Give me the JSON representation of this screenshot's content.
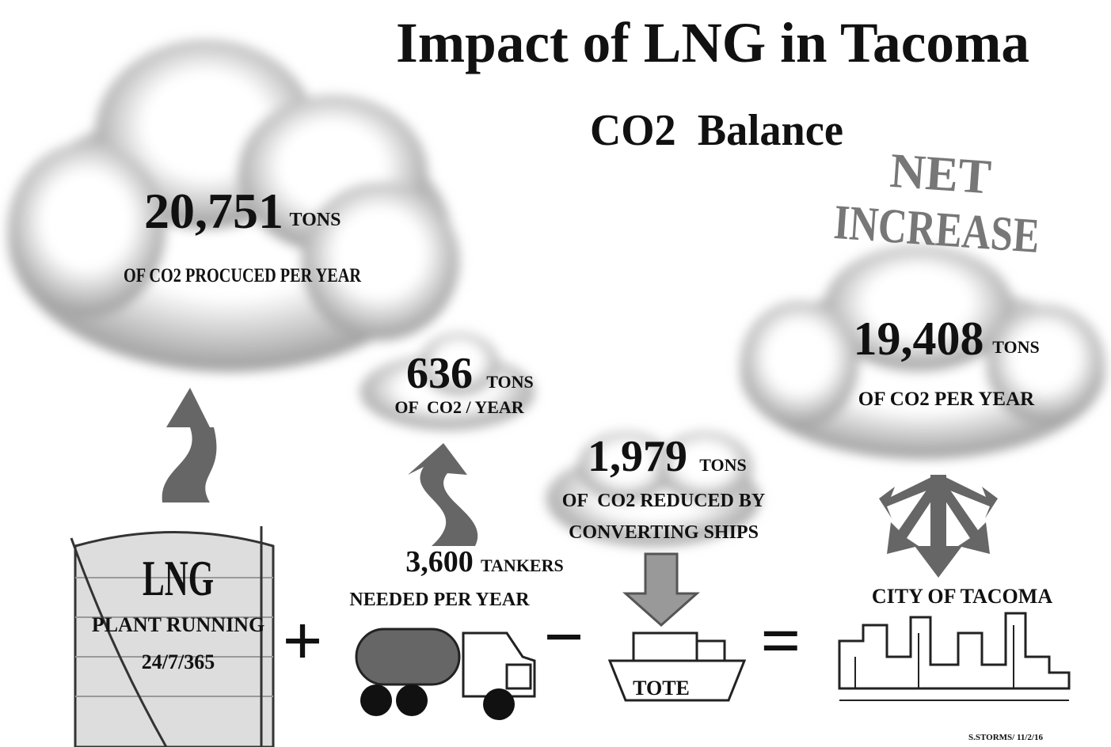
{
  "title": "Impact of LNG in Tacoma",
  "subtitle": "CO2  Balance",
  "net_label": [
    "NET",
    "INCREASE"
  ],
  "clouds": [
    {
      "amount": "20,751",
      "unit": "TONS",
      "caption": [
        "OF CO2 PROCUCED PER YEAR"
      ]
    },
    {
      "amount": "636",
      "unit": "TONS",
      "caption": [
        "OF  CO2 / YEAR"
      ]
    },
    {
      "amount": "1,979",
      "unit": "TONS",
      "caption": [
        "OF  CO2 REDUCED BY",
        "CONVERTING SHIPS"
      ]
    },
    {
      "amount": "19,408",
      "unit": "TONS",
      "caption": [
        "OF CO2 PER YEAR"
      ]
    }
  ],
  "tank": {
    "label": "LNG",
    "lines": [
      "PLANT RUNNING",
      "24/7/365"
    ]
  },
  "tankers": {
    "amount": "3,600",
    "unit": "TANKERS",
    "caption": "NEEDED PER YEAR"
  },
  "ship": {
    "label": "TOTE"
  },
  "city": {
    "label": "CITY OF TACOMA"
  },
  "operators": [
    "+",
    "−",
    "="
  ],
  "credit": "S.STORMS/ 11/2/16"
}
